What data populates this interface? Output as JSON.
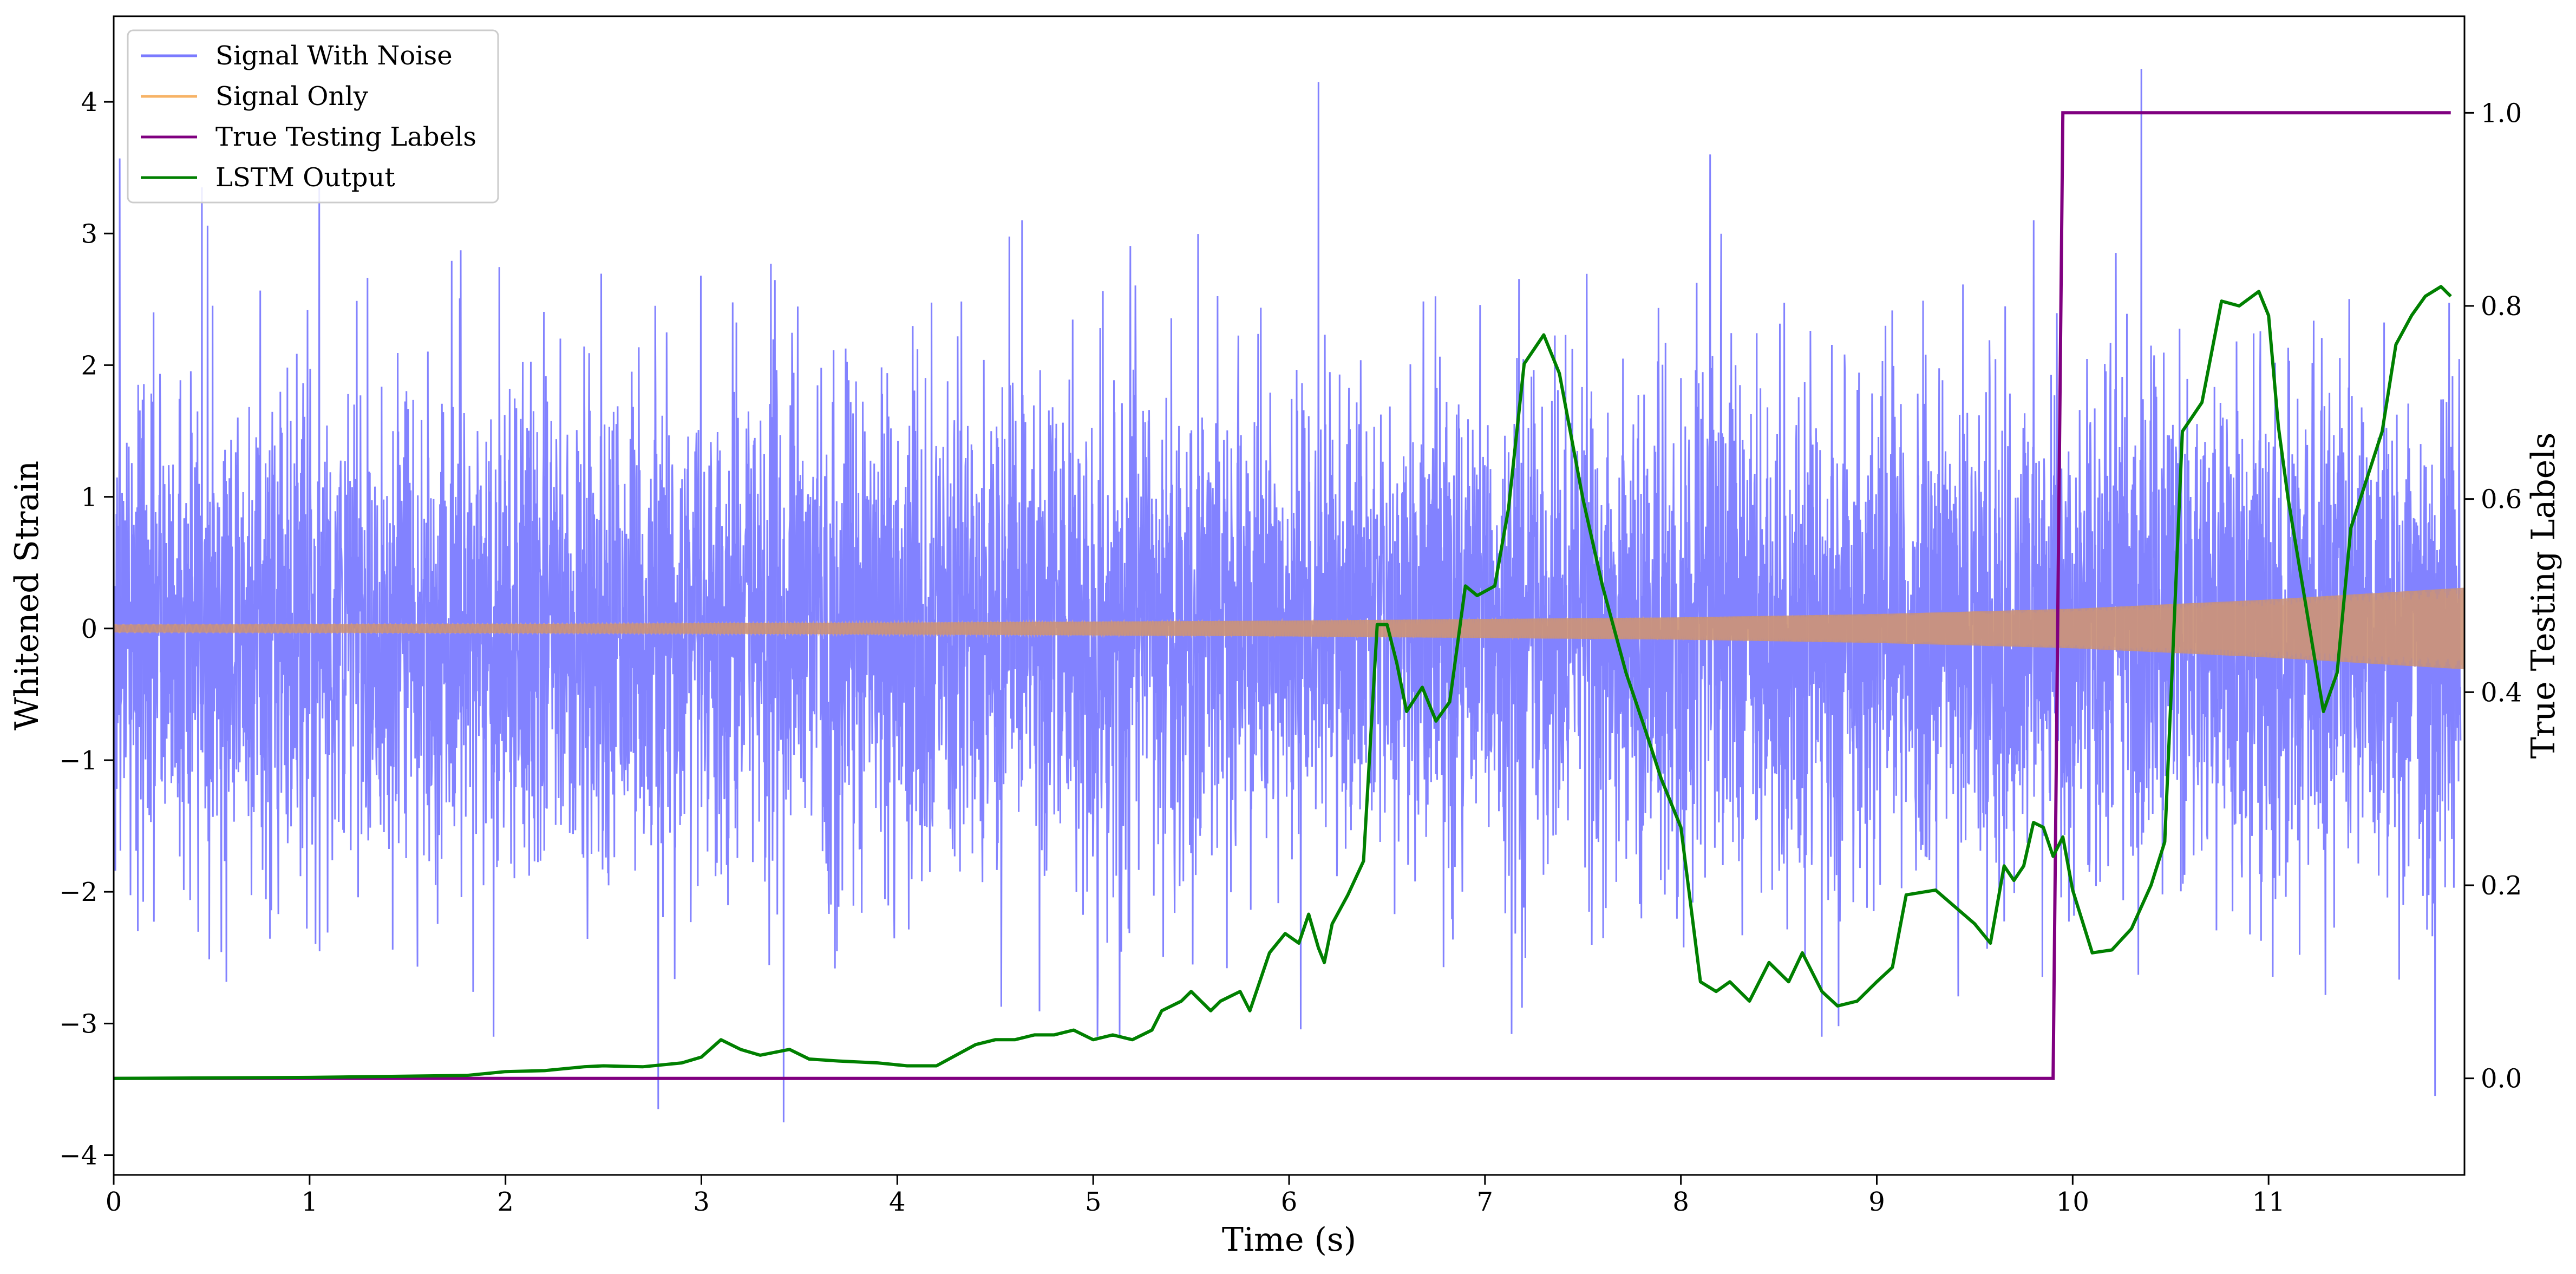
{
  "chart_data": {
    "type": "line",
    "xlabel": "Time (s)",
    "ylabel": "Whitened Strain",
    "y2label": "True Testing Labels",
    "xlim": [
      0,
      12
    ],
    "ylim": [
      -4.15,
      4.65
    ],
    "y2lim": [
      -0.1,
      1.1
    ],
    "x_ticks": [
      0,
      1,
      2,
      3,
      4,
      5,
      6,
      7,
      8,
      9,
      10,
      11
    ],
    "x_tick_labels": [
      "0",
      "1",
      "2",
      "3",
      "4",
      "5",
      "6",
      "7",
      "8",
      "9",
      "10",
      "11"
    ],
    "y_ticks": [
      -4,
      -3,
      -2,
      -1,
      0,
      1,
      2,
      3,
      4
    ],
    "y_tick_labels": [
      "−4",
      "−3",
      "−2",
      "−1",
      "0",
      "1",
      "2",
      "3",
      "4"
    ],
    "y2_ticks": [
      0.0,
      0.2,
      0.4,
      0.6,
      0.8,
      1.0
    ],
    "y2_tick_labels": [
      "0.0",
      "0.2",
      "0.4",
      "0.6",
      "0.8",
      "1.0"
    ],
    "grid": false,
    "legend_position": "top-left",
    "series": [
      {
        "name": "Signal With Noise",
        "axis": "left",
        "color": "#7b7bff",
        "kind": "noise",
        "typical_range": [
          -2.5,
          2.5
        ],
        "peaks": [
          {
            "x": 0.03,
            "y": 3.57
          },
          {
            "x": 0.45,
            "y": 3.35
          },
          {
            "x": 1.05,
            "y": 3.35
          },
          {
            "x": 2.78,
            "y": -3.65
          },
          {
            "x": 3.42,
            "y": -3.75
          },
          {
            "x": 6.15,
            "y": 4.15
          },
          {
            "x": 8.15,
            "y": 3.6
          },
          {
            "x": 10.35,
            "y": 4.25
          },
          {
            "x": 11.85,
            "y": -3.55
          }
        ]
      },
      {
        "name": "Signal Only",
        "axis": "left",
        "color": "#f7b366",
        "kind": "chirp",
        "envelope_x": [
          0,
          2,
          4,
          6,
          8,
          9,
          10,
          11,
          12
        ],
        "envelope_y": [
          0.03,
          0.035,
          0.045,
          0.06,
          0.085,
          0.11,
          0.15,
          0.22,
          0.31
        ]
      },
      {
        "name": "True Testing Labels",
        "axis": "right",
        "color": "#800080",
        "x": [
          0,
          9.9,
          9.95,
          11.93
        ],
        "y": [
          0,
          0,
          1,
          1
        ]
      },
      {
        "name": "LSTM Output",
        "axis": "right",
        "color": "#008000",
        "x": [
          0,
          1.0,
          1.8,
          2.0,
          2.2,
          2.4,
          2.5,
          2.7,
          2.9,
          3.0,
          3.1,
          3.2,
          3.3,
          3.45,
          3.55,
          3.7,
          3.9,
          4.05,
          4.2,
          4.4,
          4.5,
          4.6,
          4.7,
          4.8,
          4.9,
          5.0,
          5.1,
          5.2,
          5.3,
          5.35,
          5.45,
          5.5,
          5.6,
          5.65,
          5.75,
          5.8,
          5.9,
          5.98,
          6.05,
          6.1,
          6.15,
          6.18,
          6.22,
          6.3,
          6.38,
          6.45,
          6.5,
          6.55,
          6.6,
          6.68,
          6.75,
          6.82,
          6.9,
          6.96,
          7.05,
          7.12,
          7.2,
          7.3,
          7.38,
          7.5,
          7.6,
          7.72,
          7.82,
          7.9,
          8.0,
          8.1,
          8.18,
          8.25,
          8.35,
          8.45,
          8.55,
          8.62,
          8.72,
          8.8,
          8.9,
          9.0,
          9.08,
          9.15,
          9.3,
          9.5,
          9.58,
          9.65,
          9.7,
          9.75,
          9.8,
          9.85,
          9.9,
          9.95,
          10.0,
          10.1,
          10.2,
          10.3,
          10.4,
          10.47,
          10.56,
          10.66,
          10.76,
          10.85,
          10.95,
          11.0,
          11.05,
          11.1,
          11.28,
          11.35,
          11.42,
          11.5,
          11.58,
          11.65,
          11.73,
          11.8,
          11.88,
          11.93
        ],
        "y": [
          0,
          0.001,
          0.003,
          0.007,
          0.008,
          0.012,
          0.013,
          0.012,
          0.016,
          0.022,
          0.04,
          0.03,
          0.024,
          0.03,
          0.02,
          0.018,
          0.016,
          0.013,
          0.013,
          0.035,
          0.04,
          0.04,
          0.045,
          0.045,
          0.05,
          0.04,
          0.045,
          0.04,
          0.05,
          0.07,
          0.08,
          0.09,
          0.07,
          0.08,
          0.09,
          0.07,
          0.13,
          0.15,
          0.14,
          0.17,
          0.135,
          0.12,
          0.16,
          0.19,
          0.225,
          0.47,
          0.47,
          0.43,
          0.38,
          0.405,
          0.37,
          0.39,
          0.51,
          0.5,
          0.51,
          0.59,
          0.74,
          0.77,
          0.73,
          0.6,
          0.51,
          0.42,
          0.36,
          0.31,
          0.26,
          0.1,
          0.09,
          0.1,
          0.08,
          0.12,
          0.1,
          0.13,
          0.09,
          0.075,
          0.08,
          0.1,
          0.115,
          0.19,
          0.195,
          0.16,
          0.14,
          0.22,
          0.205,
          0.22,
          0.265,
          0.26,
          0.23,
          0.25,
          0.195,
          0.13,
          0.133,
          0.155,
          0.2,
          0.245,
          0.67,
          0.7,
          0.805,
          0.8,
          0.815,
          0.79,
          0.675,
          0.6,
          0.38,
          0.42,
          0.57,
          0.62,
          0.67,
          0.76,
          0.79,
          0.81,
          0.82,
          0.81
        ]
      }
    ]
  }
}
